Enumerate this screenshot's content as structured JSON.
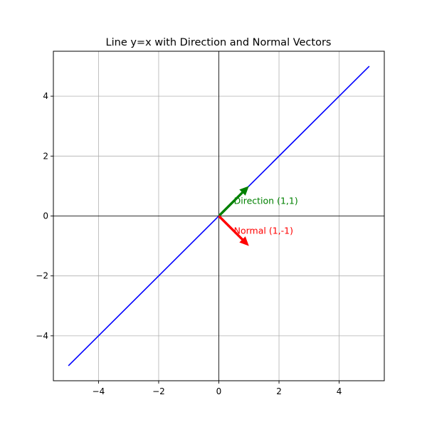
{
  "chart_data": {
    "type": "line",
    "title": "Line y=x with Direction and Normal Vectors",
    "xlabel": "",
    "ylabel": "",
    "xlim": [
      -5.5,
      5.5
    ],
    "ylim": [
      -5.5,
      5.5
    ],
    "x_ticks": [
      -4,
      -2,
      0,
      2,
      4
    ],
    "y_ticks": [
      -4,
      -2,
      0,
      2,
      4
    ],
    "x_tick_labels": [
      "−4",
      "−2",
      "0",
      "2",
      "4"
    ],
    "y_tick_labels": [
      "−4",
      "−2",
      "0",
      "2",
      "4"
    ],
    "grid": true,
    "axis_lines_at_zero": true,
    "series": [
      {
        "x": [
          -5,
          5
        ],
        "y": [
          -5,
          5
        ],
        "color": "#0000ff"
      }
    ],
    "vectors": [
      {
        "label": "Direction (1,1)",
        "origin": [
          0,
          0
        ],
        "components": [
          1,
          1
        ],
        "color": "#008000",
        "label_at": [
          0.5,
          0.5
        ]
      },
      {
        "label": "Normal (1,-1)",
        "origin": [
          0,
          0
        ],
        "components": [
          1,
          -1
        ],
        "color": "#ff0000",
        "label_at": [
          0.5,
          -0.5
        ]
      }
    ],
    "colors": {
      "grid": "#b0b0b0",
      "axis_zero": "#000000",
      "frame": "#000000"
    }
  }
}
